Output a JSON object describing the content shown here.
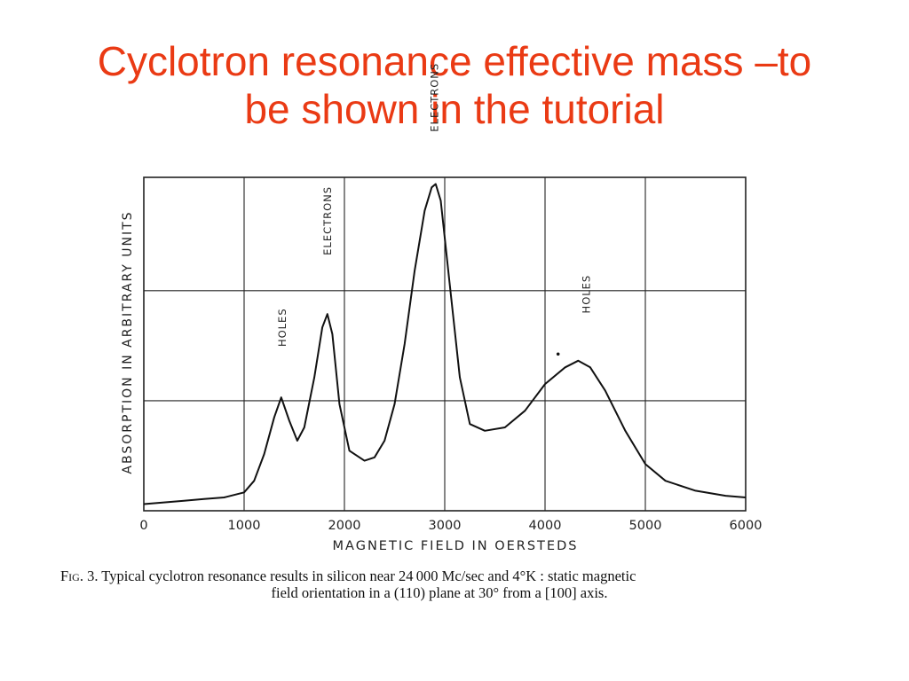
{
  "slide": {
    "title_line1": "Cyclotron resonance effective mass –to",
    "title_line2": "be shown in the tutorial"
  },
  "figure": {
    "caption_label": "Fig. 3.",
    "caption_line1": "Typical cyclotron resonance results in silicon near 24 000 Mc/sec and 4°K : static magnetic",
    "caption_line2": "field orientation in a (110) plane at 30° from a [100] axis."
  },
  "chart_data": {
    "type": "line",
    "title": "",
    "xlabel": "MAGNETIC  FIELD  IN  OERSTEDS",
    "ylabel": "ABSORPTION  IN  ARBITRARY  UNITS",
    "xlim": [
      0,
      6000
    ],
    "ylim": [
      0,
      1.0
    ],
    "x_ticks": [
      "0",
      "1000",
      "2000",
      "3000",
      "4000",
      "5000",
      "6000"
    ],
    "y_ticks": [],
    "grid": true,
    "colors": {
      "line": "#111111",
      "grid": "#222222",
      "title": "#ea3a14"
    },
    "series": [
      {
        "x": [
          0,
          200,
          400,
          600,
          800,
          1000,
          1100,
          1200,
          1300,
          1370,
          1450,
          1530,
          1600,
          1700,
          1780,
          1830,
          1880,
          1950,
          2050,
          2200,
          2300,
          2400,
          2500,
          2600,
          2700,
          2800,
          2870,
          2910,
          2960,
          3050,
          3150,
          3250,
          3400,
          3600,
          3800,
          4000,
          4200,
          4330,
          4450,
          4600,
          4800,
          5000,
          5200,
          5500,
          5800,
          6000
        ],
        "y": [
          0.02,
          0.025,
          0.03,
          0.035,
          0.04,
          0.055,
          0.09,
          0.17,
          0.28,
          0.34,
          0.27,
          0.21,
          0.25,
          0.4,
          0.55,
          0.59,
          0.53,
          0.32,
          0.18,
          0.15,
          0.16,
          0.21,
          0.32,
          0.5,
          0.72,
          0.9,
          0.97,
          0.98,
          0.93,
          0.68,
          0.4,
          0.26,
          0.24,
          0.25,
          0.3,
          0.38,
          0.43,
          0.45,
          0.43,
          0.36,
          0.24,
          0.14,
          0.09,
          0.06,
          0.045,
          0.04
        ]
      }
    ],
    "annotations": [
      {
        "text": "HOLES",
        "x": 1380,
        "y": 0.55
      },
      {
        "text": "ELECTRONS",
        "x": 1830,
        "y": 0.87
      },
      {
        "text": "ELECTRONS",
        "x": 2900,
        "y": 1.24
      },
      {
        "text": "HOLES",
        "x": 4410,
        "y": 0.65
      }
    ],
    "marker_dot": {
      "x": 4130,
      "y": 0.47
    }
  }
}
